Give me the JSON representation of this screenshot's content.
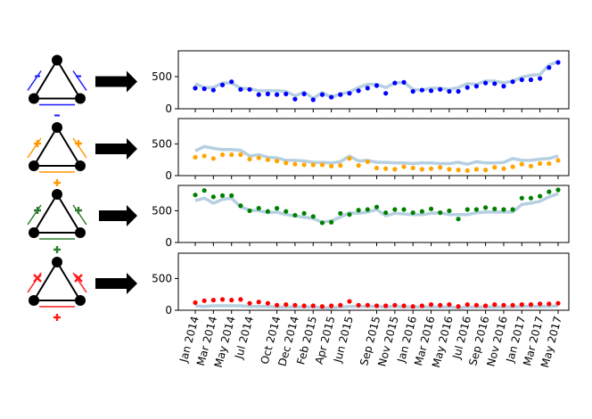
{
  "chart_data": [
    {
      "type": "line",
      "panel": "triad-minus-minus-minus",
      "icon": {
        "color": "#1a1aff",
        "signs": [
          "-",
          "-",
          "-"
        ]
      },
      "marker_color": "#0000ff",
      "line_color": "#b6d0e2",
      "ylim": [
        0,
        900
      ],
      "yticks": [
        "0",
        "500"
      ],
      "series": [
        {
          "values_line": [
            390,
            330,
            330,
            400,
            400,
            320,
            310,
            280,
            280,
            280,
            270,
            200,
            260,
            160,
            250,
            180,
            230,
            260,
            330,
            380,
            380,
            330,
            400,
            410,
            300,
            290,
            320,
            320,
            300,
            330,
            390,
            380,
            430,
            430,
            400,
            430,
            490,
            520,
            530,
            680,
            730
          ],
          "values_points": [
            320,
            310,
            290,
            370,
            420,
            300,
            300,
            220,
            230,
            220,
            230,
            150,
            230,
            140,
            220,
            180,
            220,
            240,
            280,
            320,
            360,
            240,
            400,
            410,
            270,
            290,
            280,
            300,
            270,
            270,
            330,
            350,
            400,
            390,
            350,
            420,
            450,
            450,
            470,
            640,
            720
          ]
        }
      ]
    },
    {
      "type": "line",
      "panel": "triad-plus-plus-plus-orange",
      "icon": {
        "color": "#ff9900",
        "signs": [
          "+",
          "+",
          "+"
        ]
      },
      "marker_color": "#ffa500",
      "line_color": "#b6d0e2",
      "ylim": [
        0,
        900
      ],
      "yticks": [
        "0",
        "500"
      ],
      "series": [
        {
          "values_line": [
            390,
            460,
            430,
            410,
            410,
            400,
            310,
            330,
            290,
            280,
            240,
            240,
            230,
            210,
            210,
            200,
            220,
            310,
            230,
            240,
            210,
            210,
            200,
            200,
            190,
            200,
            200,
            190,
            190,
            210,
            180,
            220,
            200,
            200,
            210,
            270,
            240,
            240,
            260,
            270,
            310
          ],
          "values_point_list": [],
          "values_points": [
            290,
            310,
            270,
            330,
            330,
            330,
            260,
            280,
            250,
            230,
            200,
            180,
            170,
            170,
            170,
            150,
            160,
            270,
            160,
            220,
            120,
            110,
            100,
            140,
            120,
            100,
            110,
            130,
            100,
            90,
            80,
            100,
            90,
            130,
            110,
            140,
            180,
            150,
            190,
            190,
            240
          ]
        }
      ]
    },
    {
      "type": "line",
      "panel": "triad-plus-plus-plus-green",
      "icon": {
        "color": "#2e7d2e",
        "signs": [
          "+",
          "+",
          "+"
        ]
      },
      "marker_color": "#008000",
      "line_color": "#b6d0e2",
      "ylim": [
        0,
        900
      ],
      "yticks": [
        "0",
        "500"
      ],
      "series": [
        {
          "values_line": [
            660,
            700,
            620,
            680,
            700,
            560,
            510,
            500,
            470,
            480,
            440,
            420,
            400,
            380,
            320,
            340,
            400,
            470,
            460,
            480,
            520,
            420,
            460,
            450,
            440,
            440,
            460,
            470,
            440,
            440,
            440,
            470,
            480,
            480,
            480,
            480,
            600,
            620,
            650,
            720,
            770
          ],
          "values_points": [
            750,
            820,
            720,
            740,
            740,
            580,
            500,
            540,
            490,
            540,
            490,
            430,
            460,
            410,
            310,
            320,
            460,
            440,
            510,
            520,
            560,
            470,
            520,
            520,
            470,
            490,
            530,
            470,
            500,
            370,
            520,
            520,
            550,
            530,
            520,
            520,
            700,
            700,
            730,
            800,
            830
          ]
        }
      ]
    },
    {
      "type": "line",
      "panel": "triad-minus-minus-plus",
      "icon": {
        "color": "#ff1a1a",
        "signs": [
          "x",
          "x",
          "+"
        ]
      },
      "marker_color": "#ff0000",
      "line_color": "#b6d0e2",
      "ylim": [
        0,
        900
      ],
      "yticks": [
        "0",
        "500"
      ],
      "series": [
        {
          "values_line": [
            70,
            60,
            70,
            70,
            70,
            70,
            60,
            60,
            60,
            50,
            50,
            50,
            50,
            50,
            40,
            40,
            50,
            60,
            60,
            60,
            60,
            50,
            60,
            50,
            50,
            50,
            50,
            50,
            50,
            40,
            50,
            50,
            50,
            50,
            50,
            50,
            60,
            60,
            60,
            60,
            70
          ],
          "values_points": [
            120,
            150,
            160,
            170,
            160,
            170,
            110,
            130,
            110,
            80,
            90,
            80,
            70,
            70,
            60,
            70,
            80,
            140,
            80,
            80,
            70,
            70,
            80,
            70,
            60,
            70,
            90,
            80,
            90,
            60,
            90,
            80,
            70,
            90,
            80,
            80,
            90,
            90,
            100,
            100,
            110
          ]
        }
      ]
    }
  ],
  "x_tick_labels": [
    "Jan 2014",
    "Mar 2014",
    "May 2014",
    "Jul 2014",
    "Oct 2014",
    "Dec 2014",
    "Feb 2015",
    "Apr 2015",
    "Jun 2015",
    "Sep 2015",
    "Nov 2015",
    "Jan 2016",
    "Mar 2016",
    "May 2016",
    "Jul 2016",
    "Sep 2016",
    "Nov 2016",
    "Jan 2017",
    "Mar 2017",
    "May 2017"
  ],
  "x_tick_index": [
    0,
    2,
    4,
    6,
    9,
    11,
    13,
    15,
    17,
    20,
    22,
    24,
    26,
    28,
    30,
    32,
    34,
    36,
    38,
    40
  ]
}
